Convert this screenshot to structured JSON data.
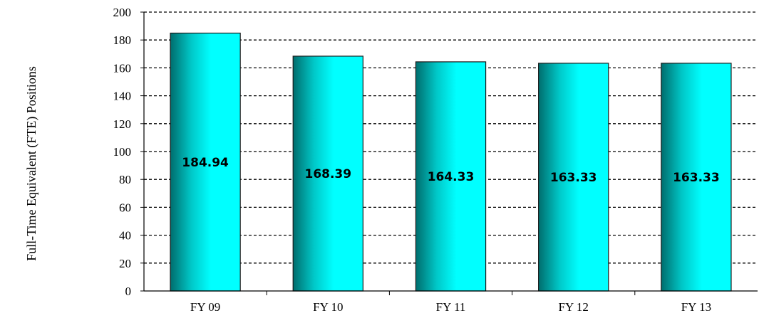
{
  "chart_data": {
    "type": "bar",
    "title": "",
    "xlabel": "",
    "ylabel": "Full-Time Equivalent (FTE) Positions",
    "categories": [
      "FY 09",
      "FY 10",
      "FY 11",
      "FY 12",
      "FY 13"
    ],
    "values": [
      184.94,
      168.39,
      164.33,
      163.33,
      163.33
    ],
    "data_labels": [
      "184.94",
      "168.39",
      "164.33",
      "163.33",
      "163.33"
    ],
    "ylim": [
      0,
      200
    ],
    "yticks": [
      0,
      20,
      40,
      60,
      80,
      100,
      120,
      140,
      160,
      180,
      200
    ],
    "grid": "horizontal dashed",
    "legend": "none",
    "bar_color": "#00FFFF",
    "bar_shade_color": "#006D6D"
  }
}
